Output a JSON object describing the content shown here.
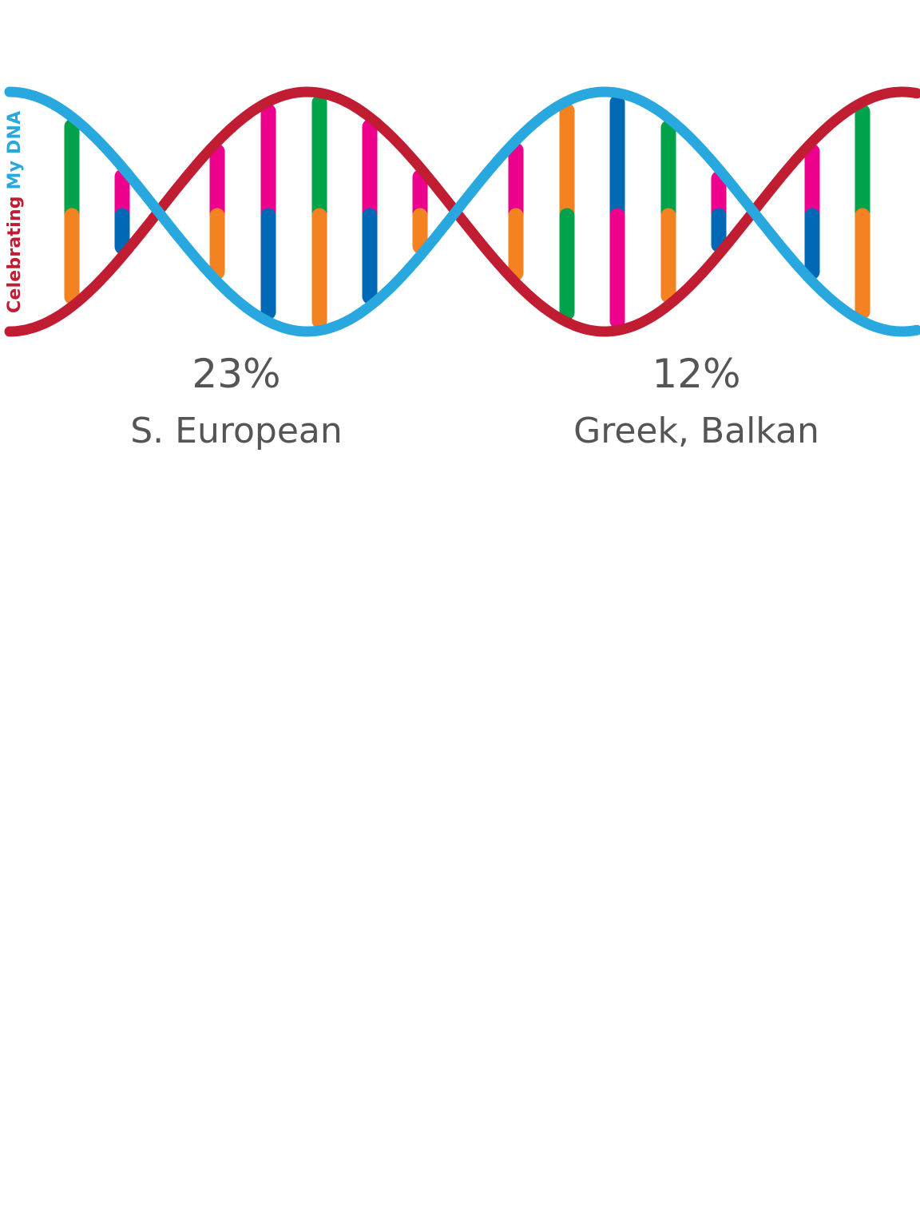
{
  "brand": {
    "word1": "Celebrating",
    "word2": "My DNA"
  },
  "stats": [
    {
      "percent": "23%",
      "label": "S. European"
    },
    {
      "percent": "12%",
      "label": "Greek, Balkan"
    }
  ],
  "colors": {
    "strand_red": "#c11d32",
    "strand_blue": "#29a8e0",
    "green": "#00a24a",
    "orange": "#f48221",
    "pink": "#ec008c",
    "navy": "#0068b4",
    "text": "#555555"
  }
}
